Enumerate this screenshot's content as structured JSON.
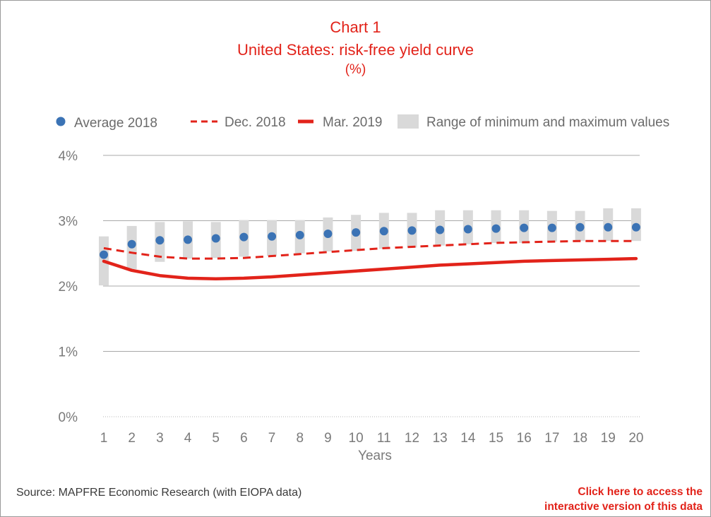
{
  "chart_data": {
    "type": "line",
    "title": "Chart 1",
    "subtitle": "United States: risk-free yield curve",
    "unit": "(%)",
    "xlabel": "Years",
    "ylabel": "",
    "categories": [
      "1",
      "2",
      "3",
      "4",
      "5",
      "6",
      "7",
      "8",
      "9",
      "10",
      "11",
      "12",
      "13",
      "14",
      "15",
      "16",
      "17",
      "18",
      "19",
      "20"
    ],
    "ylim": [
      0,
      4
    ],
    "y_ticks": [
      "0%",
      "1%",
      "2%",
      "3%",
      "4%"
    ],
    "grid": "horizontal",
    "legend_position": "top",
    "series": [
      {
        "name": "Average 2018",
        "kind": "scatter",
        "color": "#3b73b5",
        "values": [
          2.48,
          2.64,
          2.7,
          2.71,
          2.73,
          2.75,
          2.76,
          2.78,
          2.8,
          2.82,
          2.84,
          2.85,
          2.86,
          2.87,
          2.88,
          2.89,
          2.89,
          2.9,
          2.9,
          2.9
        ]
      },
      {
        "name": "Dec. 2018",
        "kind": "dashed-line",
        "color": "#e2231a",
        "values": [
          2.58,
          2.51,
          2.45,
          2.42,
          2.42,
          2.43,
          2.46,
          2.49,
          2.52,
          2.55,
          2.58,
          2.6,
          2.62,
          2.64,
          2.66,
          2.67,
          2.68,
          2.69,
          2.69,
          2.69
        ]
      },
      {
        "name": "Mar. 2019",
        "kind": "line",
        "color": "#e2231a",
        "values": [
          2.38,
          2.24,
          2.16,
          2.12,
          2.11,
          2.12,
          2.14,
          2.17,
          2.2,
          2.23,
          2.26,
          2.29,
          2.32,
          2.34,
          2.36,
          2.38,
          2.39,
          2.4,
          2.41,
          2.42
        ]
      },
      {
        "name": "Range of minimum and maximum values",
        "kind": "range-bar",
        "color": "#d9d9d9",
        "min": [
          2.01,
          2.26,
          2.37,
          2.42,
          2.43,
          2.45,
          2.46,
          2.5,
          2.53,
          2.54,
          2.57,
          2.59,
          2.62,
          2.64,
          2.66,
          2.66,
          2.68,
          2.69,
          2.69,
          2.69
        ],
        "max": [
          2.76,
          2.92,
          2.98,
          2.99,
          2.98,
          3.01,
          3.01,
          3.01,
          3.05,
          3.09,
          3.12,
          3.12,
          3.16,
          3.16,
          3.16,
          3.16,
          3.15,
          3.15,
          3.19,
          3.19
        ]
      }
    ]
  },
  "footer": {
    "source": "Source: MAPFRE Economic Research (with EIOPA data)",
    "link_line1": "Click here to access the",
    "link_line2": "interactive version of this data"
  }
}
